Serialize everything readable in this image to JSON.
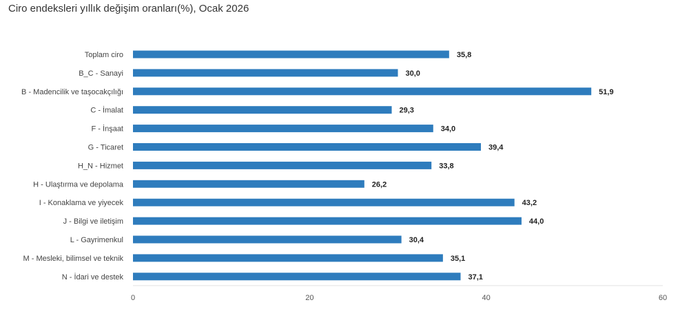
{
  "chart_data": {
    "type": "bar",
    "orientation": "horizontal",
    "title": "Ciro endeksleri yıllık değişim oranları(%), Ocak 2026",
    "categories": [
      "Toplam ciro",
      "B_C - Sanayi",
      "B - Madencilik ve taşocakçılığı",
      "C - İmalat",
      "F - İnşaat",
      "G - Ticaret",
      "H_N - Hizmet",
      "H - Ulaştırma ve depolama",
      "I - Konaklama ve yiyecek",
      "J - Bilgi ve iletişim",
      "L - Gayrimenkul",
      "M - Mesleki, bilimsel ve teknik",
      "N - İdari ve destek"
    ],
    "values": [
      35.8,
      30.0,
      51.9,
      29.3,
      34.0,
      39.4,
      33.8,
      26.2,
      43.2,
      44.0,
      30.4,
      35.1,
      37.1
    ],
    "value_labels": [
      "35,8",
      "30,0",
      "51,9",
      "29,3",
      "34,0",
      "39,4",
      "33,8",
      "26,2",
      "43,2",
      "44,0",
      "30,4",
      "35,1",
      "37,1"
    ],
    "xlim": [
      0,
      60
    ],
    "xticks": [
      0,
      20,
      40,
      60
    ],
    "xtick_labels": [
      "0",
      "20",
      "40",
      "60"
    ],
    "bar_color": "#2e7cbd",
    "grid": false,
    "legend": "none"
  }
}
